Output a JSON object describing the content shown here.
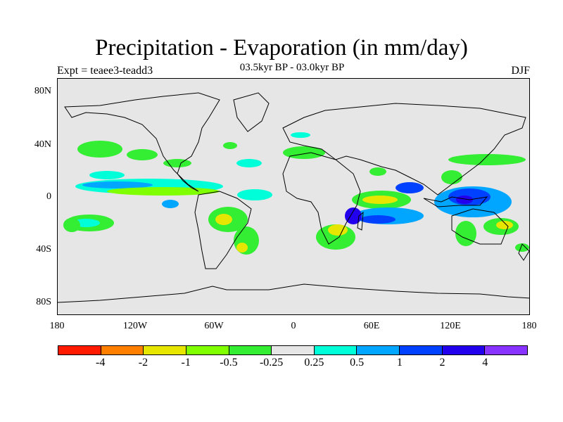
{
  "title": "Precipitation - Evaporation (in mm/day)",
  "subtitle": "03.5kyr BP - 03.0kyr BP",
  "left_label": "Expt = teaee3-teadd3",
  "right_label": "DJF",
  "lat_labels": [
    "80N",
    "40N",
    "0",
    "40S",
    "80S"
  ],
  "lon_labels": [
    "180",
    "120W",
    "60W",
    "0",
    "60E",
    "120E",
    "180"
  ],
  "colorbar": {
    "colors": [
      "#ff1a00",
      "#ff8000",
      "#e6e600",
      "#80ff00",
      "#33ee33",
      "#e6e6e6",
      "#00ffd9",
      "#00a6ff",
      "#0040ff",
      "#2200ee",
      "#8833ff"
    ],
    "labels": [
      "-4",
      "-2",
      "-1",
      "-0.5",
      "-0.25",
      "0.25",
      "0.5",
      "1",
      "2",
      "4"
    ]
  },
  "colors": {
    "land_ocean_background": "#e6e6e6",
    "coastline": "#000000"
  }
}
